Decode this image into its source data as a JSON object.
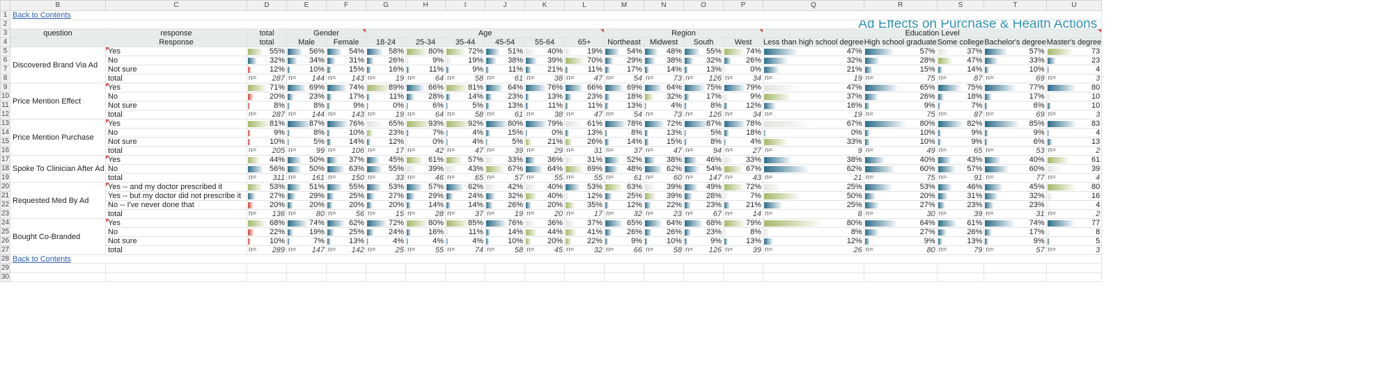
{
  "sheet": {
    "col_letters": [
      "B",
      "C",
      "D",
      "E",
      "F",
      "G",
      "H",
      "I",
      "J",
      "K",
      "L",
      "M",
      "N",
      "O",
      "P",
      "Q",
      "R",
      "S",
      "T",
      "U"
    ],
    "back_link": "Back to Contents",
    "title": "Ad Effects on Purchase & Health Actions",
    "header_row3": {
      "question": "question",
      "response": "response",
      "total": "total",
      "groups": [
        {
          "label": "Gender",
          "span": 2
        },
        {
          "label": "Age",
          "span": 6
        },
        {
          "label": "Region",
          "span": 4
        },
        {
          "label": "Education Level",
          "span": 5
        }
      ]
    },
    "header_row4": {
      "response": "Response",
      "columns": [
        "total",
        "Male",
        "Female",
        "18-24",
        "25-34",
        "35-44",
        "45-54",
        "55-64",
        "65+",
        "Northeast",
        "Midwest",
        "South",
        "West",
        "Less than high school degree",
        "High school graduate",
        "Some college",
        "Bachelor's degree",
        "Master's degree"
      ]
    },
    "n_prefix": "n=",
    "colors": {
      "blue": "#2d6e8a",
      "green": "#a5b96a",
      "red": "#c9453a",
      "title": "#3492b2",
      "header_bg": "#e7edec"
    }
  },
  "questions": [
    {
      "question": "Discovered Brand Via Ad",
      "rows": [
        {
          "label": "Yes",
          "values": [
            "55%",
            "56%",
            "54%",
            "58%",
            "80%",
            "72%",
            "51%",
            "40%",
            "19%",
            "54%",
            "48%",
            "55%",
            "74%",
            "47%",
            "57%",
            "37%",
            "57%",
            "73"
          ]
        },
        {
          "label": "No",
          "values": [
            "32%",
            "34%",
            "31%",
            "26%",
            "9%",
            "19%",
            "38%",
            "39%",
            "70%",
            "29%",
            "38%",
            "32%",
            "26%",
            "32%",
            "28%",
            "47%",
            "33%",
            "23"
          ]
        },
        {
          "label": "Not sure",
          "values": [
            "12%",
            "10%",
            "15%",
            "16%",
            "11%",
            "9%",
            "11%",
            "21%",
            "11%",
            "17%",
            "14%",
            "13%",
            "0%",
            "21%",
            "15%",
            "14%",
            "10%",
            "4"
          ]
        },
        {
          "label": "total",
          "total": true,
          "values": [
            "287",
            "144",
            "143",
            "19",
            "64",
            "58",
            "61",
            "38",
            "47",
            "54",
            "73",
            "126",
            "34",
            "19",
            "75",
            "87",
            "69",
            "3"
          ]
        }
      ]
    },
    {
      "question": "Price Mention Effect",
      "rows": [
        {
          "label": "Yes",
          "values": [
            "71%",
            "69%",
            "74%",
            "89%",
            "66%",
            "81%",
            "64%",
            "76%",
            "66%",
            "69%",
            "64%",
            "75%",
            "79%",
            "47%",
            "65%",
            "75%",
            "77%",
            "80"
          ]
        },
        {
          "label": "No",
          "values": [
            "20%",
            "23%",
            "17%",
            "11%",
            "28%",
            "14%",
            "23%",
            "13%",
            "23%",
            "18%",
            "32%",
            "17%",
            "9%",
            "37%",
            "26%",
            "18%",
            "17%",
            "10"
          ]
        },
        {
          "label": "Not sure",
          "values": [
            "8%",
            "8%",
            "9%",
            "0%",
            "6%",
            "5%",
            "13%",
            "11%",
            "11%",
            "13%",
            "4%",
            "8%",
            "12%",
            "16%",
            "9%",
            "7%",
            "6%",
            "10"
          ]
        },
        {
          "label": "total",
          "total": true,
          "values": [
            "287",
            "144",
            "143",
            "19",
            "64",
            "58",
            "61",
            "38",
            "47",
            "54",
            "73",
            "126",
            "34",
            "19",
            "75",
            "87",
            "69",
            "3"
          ]
        }
      ]
    },
    {
      "question": "Price Mention Purchase",
      "rows": [
        {
          "label": "Yes",
          "values": [
            "81%",
            "87%",
            "76%",
            "65%",
            "93%",
            "92%",
            "80%",
            "79%",
            "61%",
            "78%",
            "72%",
            "87%",
            "78%",
            "67%",
            "80%",
            "82%",
            "85%",
            "83"
          ]
        },
        {
          "label": "No",
          "values": [
            "9%",
            "8%",
            "10%",
            "23%",
            "7%",
            "4%",
            "15%",
            "0%",
            "13%",
            "8%",
            "13%",
            "5%",
            "18%",
            "0%",
            "10%",
            "9%",
            "9%",
            "4"
          ]
        },
        {
          "label": "Not sure",
          "values": [
            "10%",
            "5%",
            "14%",
            "12%",
            "0%",
            "4%",
            "5%",
            "21%",
            "26%",
            "14%",
            "15%",
            "8%",
            "4%",
            "33%",
            "10%",
            "9%",
            "6%",
            "13"
          ]
        },
        {
          "label": "total",
          "total": true,
          "values": [
            "205",
            "99",
            "106",
            "17",
            "42",
            "47",
            "39",
            "29",
            "31",
            "37",
            "47",
            "94",
            "27",
            "9",
            "49",
            "65",
            "53",
            "2"
          ]
        }
      ]
    },
    {
      "question": "Spoke To Clinician After Ad",
      "rows": [
        {
          "label": "Yes",
          "values": [
            "44%",
            "50%",
            "37%",
            "45%",
            "61%",
            "57%",
            "33%",
            "36%",
            "31%",
            "52%",
            "38%",
            "46%",
            "33%",
            "38%",
            "40%",
            "43%",
            "40%",
            "61"
          ]
        },
        {
          "label": "No",
          "values": [
            "56%",
            "50%",
            "63%",
            "55%",
            "39%",
            "43%",
            "67%",
            "64%",
            "69%",
            "48%",
            "62%",
            "54%",
            "67%",
            "62%",
            "60%",
            "57%",
            "60%",
            "39"
          ]
        },
        {
          "label": "total",
          "total": true,
          "values": [
            "311",
            "161",
            "150",
            "33",
            "46",
            "65",
            "57",
            "55",
            "55",
            "61",
            "60",
            "147",
            "43",
            "21",
            "75",
            "91",
            "77",
            "4"
          ]
        }
      ]
    },
    {
      "question": "Requested Med By Ad",
      "rows": [
        {
          "label": "Yes -- and my doctor prescribed it",
          "values": [
            "53%",
            "51%",
            "55%",
            "53%",
            "57%",
            "62%",
            "42%",
            "40%",
            "53%",
            "63%",
            "39%",
            "49%",
            "72%",
            "25%",
            "53%",
            "46%",
            "45%",
            "80"
          ]
        },
        {
          "label": "Yes -- but my doctor did not prescribe it",
          "values": [
            "27%",
            "29%",
            "25%",
            "27%",
            "29%",
            "24%",
            "32%",
            "40%",
            "12%",
            "25%",
            "39%",
            "28%",
            "7%",
            "50%",
            "20%",
            "31%",
            "32%",
            "16"
          ]
        },
        {
          "label": "No -- I've never done that",
          "values": [
            "20%",
            "20%",
            "20%",
            "20%",
            "14%",
            "14%",
            "26%",
            "20%",
            "35%",
            "12%",
            "22%",
            "23%",
            "21%",
            "25%",
            "27%",
            "23%",
            "23%",
            "4"
          ]
        },
        {
          "label": "total",
          "total": true,
          "values": [
            "136",
            "80",
            "56",
            "15",
            "28",
            "37",
            "19",
            "20",
            "17",
            "32",
            "23",
            "67",
            "14",
            "8",
            "30",
            "39",
            "31",
            "2"
          ]
        }
      ]
    },
    {
      "question": "Bought Co-Branded",
      "rows": [
        {
          "label": "Yes",
          "values": [
            "68%",
            "74%",
            "62%",
            "72%",
            "80%",
            "85%",
            "76%",
            "36%",
            "37%",
            "65%",
            "64%",
            "68%",
            "79%",
            "80%",
            "64%",
            "61%",
            "74%",
            "77"
          ]
        },
        {
          "label": "No",
          "values": [
            "22%",
            "19%",
            "25%",
            "24%",
            "16%",
            "11%",
            "14%",
            "44%",
            "41%",
            "26%",
            "26%",
            "23%",
            "8%",
            "8%",
            "27%",
            "26%",
            "17%",
            "8"
          ]
        },
        {
          "label": "Not sure",
          "values": [
            "10%",
            "7%",
            "13%",
            "4%",
            "4%",
            "4%",
            "10%",
            "20%",
            "22%",
            "9%",
            "10%",
            "9%",
            "13%",
            "12%",
            "9%",
            "13%",
            "9%",
            "5"
          ]
        },
        {
          "label": "total",
          "total": true,
          "values": [
            "289",
            "147",
            "142",
            "25",
            "55",
            "74",
            "58",
            "45",
            "32",
            "66",
            "58",
            "126",
            "39",
            "26",
            "80",
            "79",
            "57",
            "3"
          ]
        }
      ]
    }
  ]
}
